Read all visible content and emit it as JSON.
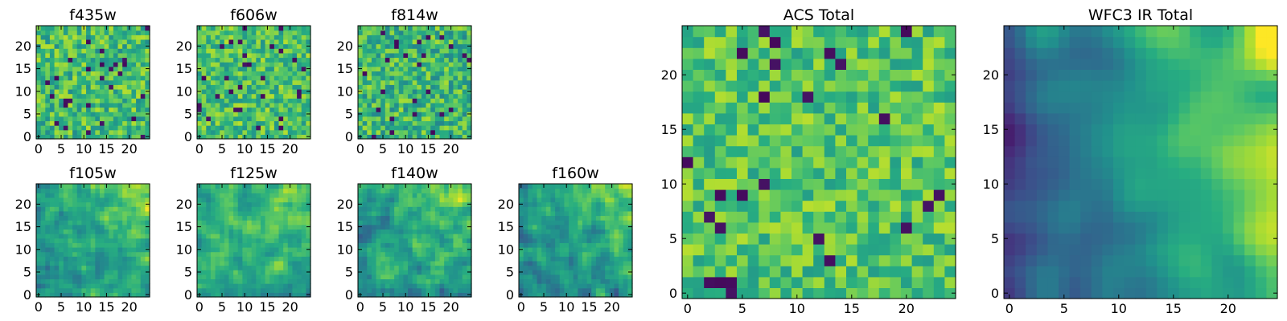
{
  "chart_data": [
    {
      "type": "heatmap",
      "title": "f435w",
      "xticks": [
        "0",
        "5",
        "10",
        "15",
        "20"
      ],
      "yticks": [
        "0",
        "5",
        "10",
        "15",
        "20"
      ],
      "xlim": [
        0,
        25
      ],
      "ylim": [
        0,
        25
      ],
      "grid_size": 25,
      "colormap": "viridis",
      "color_range": [
        0,
        1
      ],
      "pattern": "noise",
      "seed": 11,
      "mean": 0.68,
      "spread": 0.22
    },
    {
      "type": "heatmap",
      "title": "f606w",
      "xticks": [
        "0",
        "5",
        "10",
        "15",
        "20"
      ],
      "yticks": [
        "0",
        "5",
        "10",
        "15",
        "20"
      ],
      "xlim": [
        0,
        25
      ],
      "ylim": [
        0,
        25
      ],
      "grid_size": 25,
      "colormap": "viridis",
      "color_range": [
        0,
        1
      ],
      "pattern": "noise",
      "seed": 23,
      "mean": 0.7,
      "spread": 0.2
    },
    {
      "type": "heatmap",
      "title": "f814w",
      "xticks": [
        "0",
        "5",
        "10",
        "15",
        "20"
      ],
      "yticks": [
        "0",
        "5",
        "10",
        "15",
        "20"
      ],
      "xlim": [
        0,
        25
      ],
      "ylim": [
        0,
        25
      ],
      "grid_size": 25,
      "colormap": "viridis",
      "color_range": [
        0,
        1
      ],
      "pattern": "noise",
      "seed": 37,
      "mean": 0.66,
      "spread": 0.22
    },
    {
      "type": "heatmap",
      "title": "f105w",
      "xticks": [
        "0",
        "5",
        "10",
        "15",
        "20"
      ],
      "yticks": [
        "0",
        "5",
        "10",
        "15",
        "20"
      ],
      "xlim": [
        0,
        25
      ],
      "ylim": [
        0,
        25
      ],
      "grid_size": 25,
      "colormap": "viridis",
      "color_range": [
        0,
        1
      ],
      "pattern": "smooth",
      "seed": 41,
      "mean": 0.62,
      "spread": 0.22
    },
    {
      "type": "heatmap",
      "title": "f125w",
      "xticks": [
        "0",
        "5",
        "10",
        "15",
        "20"
      ],
      "yticks": [
        "0",
        "5",
        "10",
        "15",
        "20"
      ],
      "xlim": [
        0,
        25
      ],
      "ylim": [
        0,
        25
      ],
      "grid_size": 25,
      "colormap": "viridis",
      "color_range": [
        0,
        1
      ],
      "pattern": "smooth",
      "seed": 53,
      "mean": 0.62,
      "spread": 0.22
    },
    {
      "type": "heatmap",
      "title": "f140w",
      "xticks": [
        "0",
        "5",
        "10",
        "15",
        "20"
      ],
      "yticks": [
        "0",
        "5",
        "10",
        "15",
        "20"
      ],
      "xlim": [
        0,
        25
      ],
      "ylim": [
        0,
        25
      ],
      "grid_size": 25,
      "colormap": "viridis",
      "color_range": [
        0,
        1
      ],
      "pattern": "smooth",
      "seed": 67,
      "mean": 0.58,
      "spread": 0.24
    },
    {
      "type": "heatmap",
      "title": "f160w",
      "xticks": [
        "0",
        "5",
        "10",
        "15",
        "20"
      ],
      "yticks": [
        "0",
        "5",
        "10",
        "15",
        "20"
      ],
      "xlim": [
        0,
        25
      ],
      "ylim": [
        0,
        25
      ],
      "grid_size": 25,
      "colormap": "viridis",
      "color_range": [
        0,
        1
      ],
      "pattern": "smooth",
      "seed": 79,
      "mean": 0.55,
      "spread": 0.24
    },
    {
      "type": "heatmap",
      "title": "ACS Total",
      "xticks": [
        "0",
        "5",
        "10",
        "15",
        "20"
      ],
      "yticks": [
        "0",
        "5",
        "10",
        "15",
        "20"
      ],
      "xlim": [
        0,
        25
      ],
      "ylim": [
        0,
        25
      ],
      "grid_size": 25,
      "colormap": "viridis",
      "color_range": [
        0,
        1
      ],
      "pattern": "noise",
      "seed": 97,
      "mean": 0.72,
      "spread": 0.18
    },
    {
      "type": "heatmap",
      "title": "WFC3 IR Total",
      "xticks": [
        "0",
        "5",
        "10",
        "15",
        "20"
      ],
      "yticks": [
        "0",
        "5",
        "10",
        "15",
        "20"
      ],
      "xlim": [
        0,
        25
      ],
      "ylim": [
        0,
        25
      ],
      "grid_size": 25,
      "colormap": "viridis",
      "color_range": [
        0,
        1
      ],
      "pattern": "gradient",
      "seed": 113,
      "mean": 0.55,
      "spread": 0.22
    }
  ]
}
